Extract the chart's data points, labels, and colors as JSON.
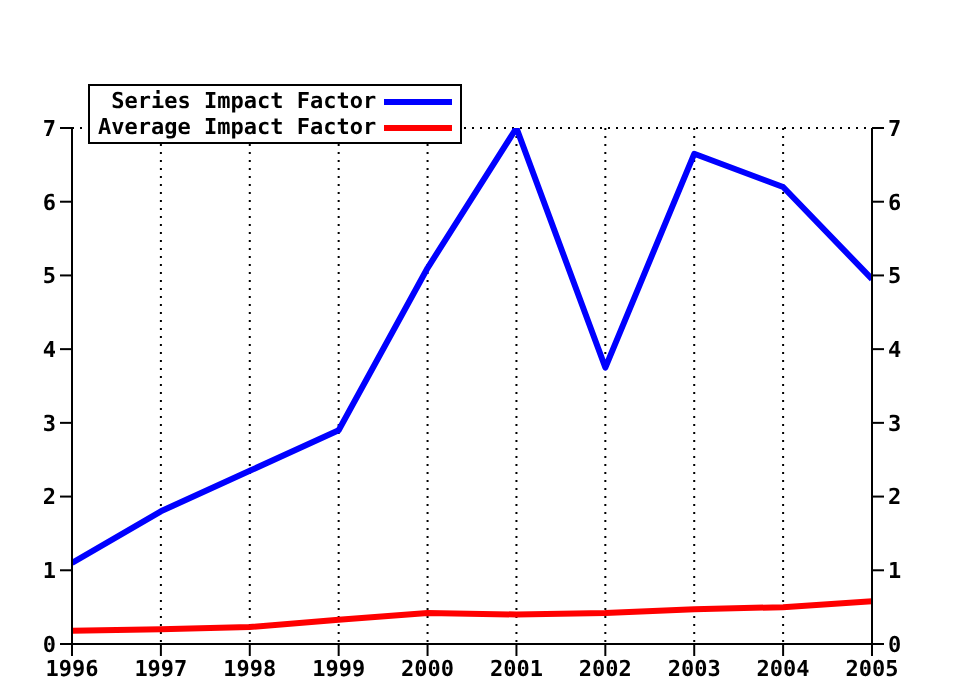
{
  "chart_data": {
    "type": "line",
    "x": [
      1996,
      1997,
      1998,
      1999,
      2000,
      2001,
      2002,
      2003,
      2004,
      2005
    ],
    "xlim": [
      1996,
      2005
    ],
    "xticks": [
      1996,
      1997,
      1998,
      1999,
      2000,
      2001,
      2002,
      2003,
      2004,
      2005
    ],
    "ylim": [
      0,
      7
    ],
    "yticks": [
      0,
      1,
      2,
      3,
      4,
      5,
      6,
      7
    ],
    "y2lim": [
      0,
      7
    ],
    "y2ticks": [
      0,
      1,
      2,
      3,
      4,
      5,
      6,
      7
    ],
    "grid": true,
    "legend": "top left",
    "marker": "none",
    "line_style": "solid",
    "series": [
      {
        "name": "Series Impact Factor",
        "color": "#0000ff",
        "values": [
          1.1,
          1.8,
          2.35,
          2.9,
          5.1,
          7.0,
          3.75,
          6.65,
          6.2,
          4.95
        ]
      },
      {
        "name": "Average Impact Factor",
        "color": "#ff0000",
        "values": [
          0.18,
          0.2,
          0.23,
          0.33,
          0.42,
          0.4,
          0.42,
          0.47,
          0.5,
          0.58
        ]
      }
    ]
  }
}
